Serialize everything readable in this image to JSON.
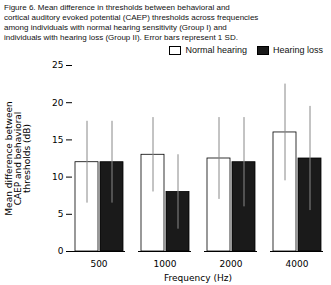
{
  "chart_data": {
    "type": "bar",
    "title": "Figure 6. Mean difference in thresholds between behavioral and\ncortical auditory evoked potential (CAEP) thresholds across frequencies\namong individuals with normal hearing sensitivity (Group I) and\nindividuals with hearing loss (Group II). Error bars represent 1 SD.",
    "xlabel": "Frequency (Hz)",
    "ylabel": "Mean difference between\nCAEP and behavioral\nthresholds (dB)",
    "categories": [
      "500",
      "1000",
      "2000",
      "4000"
    ],
    "series": [
      {
        "name": "Normal hearing",
        "color": "#ffffff",
        "values": [
          12.0,
          13.0,
          12.5,
          16.0
        ],
        "errors": [
          5.5,
          5.0,
          5.5,
          6.5
        ]
      },
      {
        "name": "Hearing loss",
        "color": "#1a1a1a",
        "values": [
          12.0,
          8.0,
          12.0,
          12.5
        ],
        "errors": [
          5.5,
          5.0,
          6.0,
          7.0
        ]
      }
    ],
    "ylim": [
      0,
      25
    ],
    "yticks": [
      0,
      5,
      10,
      15,
      20,
      25
    ],
    "grid": false,
    "legend": "top"
  }
}
